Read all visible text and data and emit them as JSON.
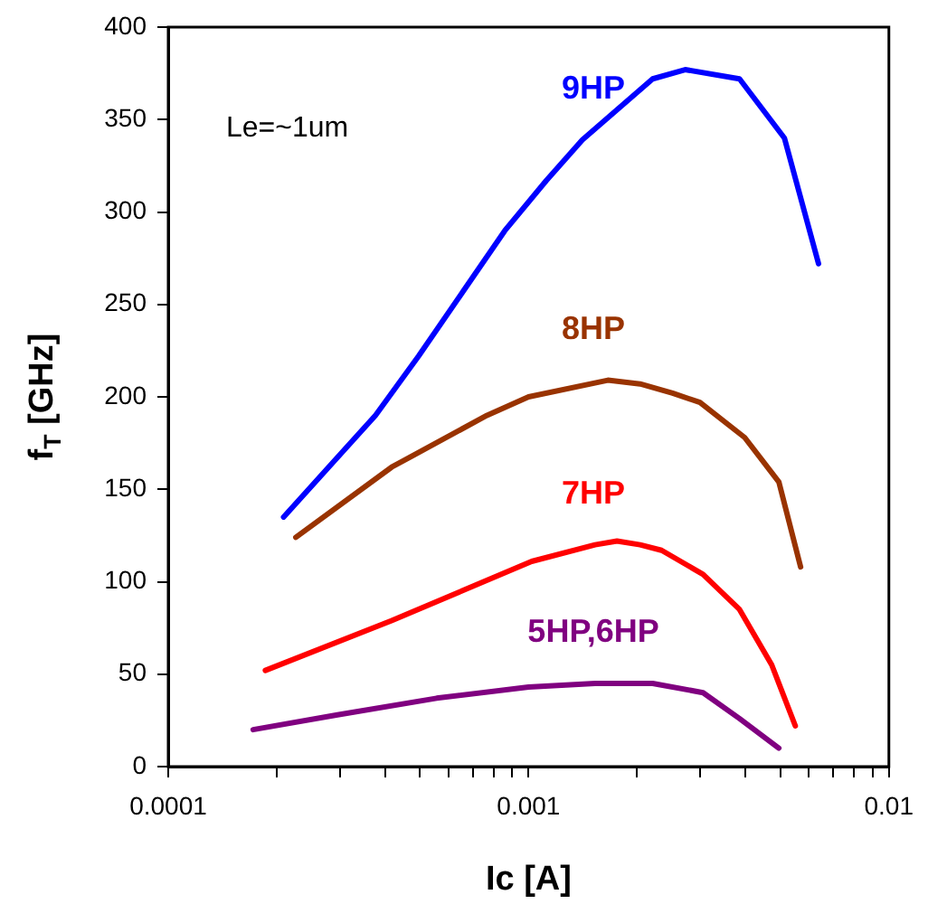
{
  "chart_data": {
    "type": "line",
    "xlabel": "Ic [A]",
    "ylabel": "f$_{T}$ [GHz]",
    "log": "x",
    "grid": false,
    "legend": false,
    "marker": "none",
    "line_style": "solid",
    "xlim": [
      0.0001,
      0.01
    ],
    "xticks": [
      0.0001,
      {
        "value": 0.0002,
        "label": null
      },
      {
        "value": 0.0003,
        "label": null
      },
      {
        "value": 0.0004,
        "label": null
      },
      {
        "value": 0.0005,
        "label": null
      },
      {
        "value": 0.0006,
        "label": null
      },
      {
        "value": 0.0007,
        "label": null
      },
      {
        "value": 0.0008,
        "label": null
      },
      {
        "value": 0.0009,
        "label": null
      },
      0.001,
      {
        "value": 0.002,
        "label": null
      },
      {
        "value": 0.003,
        "label": null
      },
      {
        "value": 0.004,
        "label": null
      },
      {
        "value": 0.005,
        "label": null
      },
      {
        "value": 0.006,
        "label": null
      },
      {
        "value": 0.007,
        "label": null
      },
      {
        "value": 0.008,
        "label": null
      },
      {
        "value": 0.009,
        "label": null
      },
      0.01
    ],
    "ylim": [
      0,
      400
    ],
    "yticks": [
      0,
      50,
      100,
      150,
      200,
      250,
      300,
      350,
      400
    ],
    "annotations": [
      "Le=~1um"
    ],
    "series": [
      {
        "name": "9HP",
        "color": "#0000ff",
        "x": [
          0.000209,
          0.000376,
          0.000495,
          0.00086,
          0.00112,
          0.00141,
          0.00221,
          0.00272,
          0.00385,
          0.00513,
          0.00638
        ],
        "values": [
          135,
          190,
          222,
          290,
          317,
          339,
          372,
          377,
          372,
          340,
          272
        ]
      },
      {
        "name": "8HP",
        "color": "#993300",
        "x": [
          0.000226,
          0.000417,
          0.000767,
          0.001,
          0.00166,
          0.00204,
          0.00251,
          0.00299,
          0.00398,
          0.00495,
          0.00569
        ],
        "values": [
          124,
          162,
          190,
          200,
          209,
          207,
          202,
          197,
          178,
          154,
          108
        ]
      },
      {
        "name": "7HP",
        "color": "#ff0000",
        "x": [
          0.000186,
          0.000417,
          0.00102,
          0.00153,
          0.00176,
          0.00204,
          0.00234,
          0.00305,
          0.00385,
          0.00473,
          0.0055
        ],
        "values": [
          52,
          79,
          111,
          120,
          122,
          120,
          117,
          104,
          85,
          55,
          22
        ]
      },
      {
        "name": "5HP,6HP",
        "color": "#800080",
        "x": [
          0.000172,
          0.000295,
          0.000556,
          0.001,
          0.00153,
          0.00221,
          0.00305,
          0.00385,
          0.00495
        ],
        "values": [
          20,
          28,
          37,
          43,
          45,
          45,
          40,
          26,
          10
        ]
      }
    ]
  }
}
